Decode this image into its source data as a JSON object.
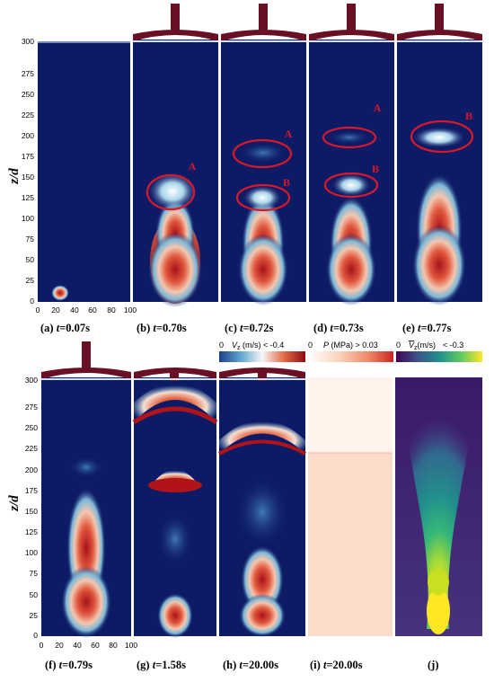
{
  "ylabel": "z/d",
  "y_ticks": [
    "0",
    "25",
    "50",
    "75",
    "100",
    "125",
    "150",
    "175",
    "200",
    "225",
    "250",
    "275",
    "300"
  ],
  "x_ticks": [
    "0",
    "20",
    "40",
    "60",
    "80",
    "100"
  ],
  "captions_top": [
    {
      "pre": "(a) ",
      "var": "t",
      "post": "=0.07s"
    },
    {
      "pre": "(b) ",
      "var": "t",
      "post": "=0.70s"
    },
    {
      "pre": "(c) ",
      "var": "t",
      "post": "=0.72s"
    },
    {
      "pre": "(d) ",
      "var": "t",
      "post": "=0.73s"
    },
    {
      "pre": "(e) ",
      "var": "t",
      "post": "=0.77s"
    }
  ],
  "captions_bottom": [
    {
      "pre": "(f) ",
      "var": "t",
      "post": "=0.79s"
    },
    {
      "pre": "(g) ",
      "var": "t",
      "post": "=1.58s"
    },
    {
      "pre": "(h) ",
      "var": "t",
      "post": "=20.00s"
    },
    {
      "pre": "(i) ",
      "var": "t",
      "post": "=20.00s"
    },
    {
      "pre": "(j)",
      "var": "",
      "post": ""
    }
  ],
  "annotations": {
    "A": "A",
    "B": "B"
  },
  "colorbars": [
    {
      "min": "0",
      "var": "V",
      "sub": "z",
      "unit": " (m/s) ",
      "max": "< -0.4"
    },
    {
      "min": "0",
      "var": "P",
      "sub": "",
      "unit": " (MPa) ",
      "max": "> 0.03"
    },
    {
      "min": "0",
      "var": "V",
      "sub": "z",
      "unit": "(m/s)",
      "max": "< -0.3"
    }
  ],
  "colors": {
    "background": "#0d1a66",
    "red_core": "#b01418",
    "annotation": "#d8192a",
    "cloud": "#6a1024"
  }
}
